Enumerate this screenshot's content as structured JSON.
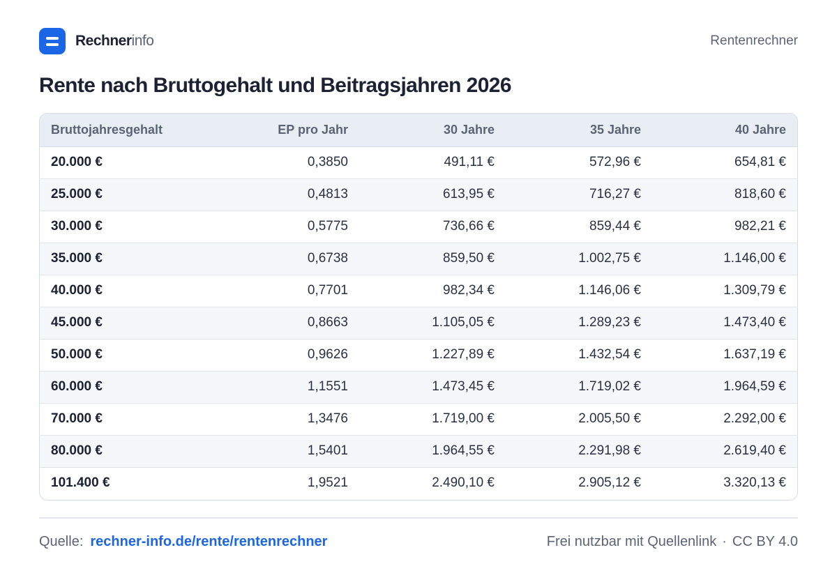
{
  "brand": {
    "name_strong": "Rechner",
    "name_light": "info"
  },
  "header": {
    "right_label": "Rentenrechner"
  },
  "title": "Rente nach Bruttogehalt und Beitragsjahren 2026",
  "table": {
    "columns": [
      "Bruttojahresgehalt",
      "EP pro Jahr",
      "30 Jahre",
      "35 Jahre",
      "40 Jahre"
    ],
    "rows": [
      [
        "20.000 €",
        "0,3850",
        "491,11 €",
        "572,96 €",
        "654,81 €"
      ],
      [
        "25.000 €",
        "0,4813",
        "613,95 €",
        "716,27 €",
        "818,60 €"
      ],
      [
        "30.000 €",
        "0,5775",
        "736,66 €",
        "859,44 €",
        "982,21 €"
      ],
      [
        "35.000 €",
        "0,6738",
        "859,50 €",
        "1.002,75 €",
        "1.146,00 €"
      ],
      [
        "40.000 €",
        "0,7701",
        "982,34 €",
        "1.146,06 €",
        "1.309,79 €"
      ],
      [
        "45.000 €",
        "0,8663",
        "1.105,05 €",
        "1.289,23 €",
        "1.473,40 €"
      ],
      [
        "50.000 €",
        "0,9626",
        "1.227,89 €",
        "1.432,54 €",
        "1.637,19 €"
      ],
      [
        "60.000 €",
        "1,1551",
        "1.473,45 €",
        "1.719,02 €",
        "1.964,59 €"
      ],
      [
        "70.000 €",
        "1,3476",
        "1.719,00 €",
        "2.005,50 €",
        "2.292,00 €"
      ],
      [
        "80.000 €",
        "1,5401",
        "1.964,55 €",
        "2.291,98 €",
        "2.619,40 €"
      ],
      [
        "101.400 €",
        "1,9521",
        "2.490,10 €",
        "2.905,12 €",
        "3.320,13 €"
      ]
    ]
  },
  "footer": {
    "source_label": "Quelle:",
    "source_link": "rechner-info.de/rente/rentenrechner",
    "license_text": "Frei nutzbar mit Quellenlink",
    "separator": "·",
    "license_name": "CC BY 4.0"
  },
  "colors": {
    "accent": "#1a66e6",
    "text": "#1b2233",
    "muted": "#5b6475",
    "header_bg": "#e9eef5",
    "row_alt_bg": "#f5f8fb"
  }
}
